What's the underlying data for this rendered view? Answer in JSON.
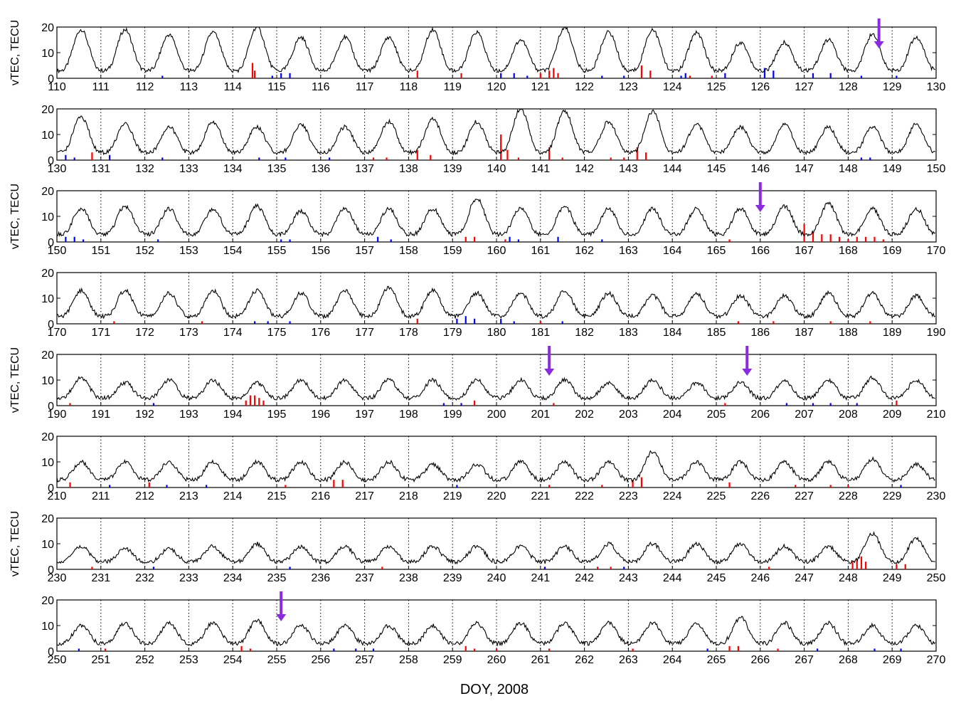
{
  "chart_data": {
    "type": "line",
    "xlabel": "DOY, 2008",
    "ylabel": "vTEC, TECU",
    "y_ticks": [
      0,
      10,
      20
    ],
    "ylim": [
      0,
      20
    ],
    "grid": "vertical dotted at each day",
    "series_colors": {
      "vtec": "#000000",
      "positive_bars": "#ff0000",
      "negative_bars": "#0000ff",
      "arrows": "#8a2be2"
    },
    "panels": [
      {
        "x_ticks": [
          110,
          111,
          112,
          113,
          114,
          115,
          116,
          117,
          118,
          119,
          120,
          121,
          122,
          123,
          124,
          125,
          126,
          127,
          128,
          129,
          130
        ],
        "xlim": [
          110,
          130
        ],
        "ylabel": "vTEC, TECU",
        "amplitudes": [
          19,
          19,
          17,
          18,
          20,
          16,
          16,
          16,
          19,
          18,
          15,
          20,
          18,
          19,
          18,
          14,
          14,
          15,
          17,
          16
        ],
        "arrows": [
          128.7
        ],
        "red": [
          [
            114.45,
            6
          ],
          [
            114.5,
            3
          ],
          [
            118.2,
            3
          ],
          [
            119.2,
            2
          ],
          [
            121.0,
            2
          ],
          [
            121.2,
            3
          ],
          [
            121.3,
            4
          ],
          [
            121.4,
            2
          ],
          [
            123.3,
            5
          ],
          [
            123.5,
            3
          ],
          [
            124.4,
            1
          ],
          [
            124.9,
            1
          ]
        ],
        "blue": [
          [
            112.4,
            1
          ],
          [
            114.9,
            1
          ],
          [
            115.1,
            2
          ],
          [
            115.3,
            2
          ],
          [
            120.1,
            2
          ],
          [
            120.4,
            2
          ],
          [
            120.7,
            1
          ],
          [
            122.4,
            1
          ],
          [
            122.9,
            1
          ],
          [
            124.2,
            1
          ],
          [
            124.3,
            2
          ],
          [
            125.2,
            2
          ],
          [
            126.1,
            4
          ],
          [
            126.3,
            3
          ],
          [
            127.2,
            2
          ],
          [
            127.6,
            2
          ],
          [
            128.3,
            1
          ],
          [
            129.1,
            1
          ]
        ]
      },
      {
        "x_ticks": [
          130,
          131,
          132,
          133,
          134,
          135,
          136,
          137,
          138,
          139,
          140,
          141,
          142,
          143,
          144,
          145,
          146,
          147,
          148,
          149,
          150
        ],
        "xlim": [
          130,
          150
        ],
        "ylabel": "",
        "amplitudes": [
          17,
          14,
          13,
          15,
          13,
          14,
          13,
          15,
          16,
          15,
          20,
          19,
          15,
          19,
          14,
          13,
          14,
          13,
          13,
          14
        ],
        "arrows": [],
        "red": [
          [
            130.8,
            3
          ],
          [
            137.2,
            1
          ],
          [
            137.5,
            1
          ],
          [
            138.2,
            4
          ],
          [
            138.5,
            2
          ],
          [
            140.1,
            10
          ],
          [
            140.25,
            4
          ],
          [
            140.5,
            1
          ],
          [
            141.2,
            5
          ],
          [
            141.5,
            1
          ],
          [
            142.6,
            1
          ],
          [
            142.9,
            1
          ],
          [
            143.2,
            5
          ],
          [
            143.4,
            3
          ]
        ],
        "blue": [
          [
            130.2,
            2
          ],
          [
            130.4,
            1
          ],
          [
            131.2,
            2
          ],
          [
            132.4,
            1
          ],
          [
            134.6,
            1
          ],
          [
            135.2,
            1
          ],
          [
            136.2,
            1
          ],
          [
            148.3,
            1
          ],
          [
            148.5,
            1
          ]
        ]
      },
      {
        "x_ticks": [
          150,
          151,
          152,
          153,
          154,
          155,
          156,
          157,
          158,
          159,
          160,
          161,
          162,
          163,
          164,
          165,
          166,
          167,
          168,
          169,
          170
        ],
        "xlim": [
          150,
          170
        ],
        "ylabel": "vTEC, TECU",
        "amplitudes": [
          13,
          14,
          13,
          13,
          14,
          12,
          13,
          13,
          13,
          17,
          13,
          14,
          13,
          13,
          13,
          13,
          14,
          15,
          13,
          13
        ],
        "arrows": [
          166.0
        ],
        "red": [
          [
            159.3,
            2
          ],
          [
            159.5,
            2
          ],
          [
            160.2,
            1
          ],
          [
            165.3,
            1
          ],
          [
            167.0,
            7
          ],
          [
            167.2,
            4
          ],
          [
            167.4,
            3
          ],
          [
            167.6,
            3
          ],
          [
            167.8,
            2
          ],
          [
            168.0,
            1
          ],
          [
            168.2,
            2
          ],
          [
            168.4,
            2
          ],
          [
            168.6,
            2
          ],
          [
            168.8,
            1
          ]
        ],
        "blue": [
          [
            150.2,
            2
          ],
          [
            150.4,
            2
          ],
          [
            150.6,
            1
          ],
          [
            152.3,
            1
          ],
          [
            155.1,
            1
          ],
          [
            155.3,
            1
          ],
          [
            157.3,
            2
          ],
          [
            157.6,
            1
          ],
          [
            160.3,
            2
          ],
          [
            160.5,
            1
          ],
          [
            161.4,
            2
          ],
          [
            162.4,
            1
          ]
        ]
      },
      {
        "x_ticks": [
          170,
          171,
          172,
          173,
          174,
          175,
          176,
          177,
          178,
          179,
          180,
          181,
          182,
          183,
          184,
          185,
          186,
          187,
          188,
          189,
          190
        ],
        "xlim": [
          170,
          190
        ],
        "ylabel": "",
        "amplitudes": [
          13,
          13,
          12,
          13,
          13,
          12,
          13,
          14,
          13,
          12,
          12,
          13,
          12,
          11,
          12,
          11,
          11,
          12,
          12,
          11
        ],
        "arrows": [],
        "red": [
          [
            171.3,
            1
          ],
          [
            173.3,
            1
          ],
          [
            178.2,
            2
          ],
          [
            181.0,
            1
          ],
          [
            185.5,
            1
          ],
          [
            186.3,
            1
          ],
          [
            187.6,
            1
          ],
          [
            188.5,
            1
          ]
        ],
        "blue": [
          [
            174.5,
            1
          ],
          [
            174.8,
            1
          ],
          [
            175.3,
            1
          ],
          [
            179.1,
            2
          ],
          [
            179.3,
            3
          ],
          [
            179.5,
            2
          ],
          [
            180.1,
            2
          ],
          [
            180.4,
            1
          ],
          [
            181.5,
            1
          ]
        ]
      },
      {
        "x_ticks": [
          190,
          191,
          192,
          193,
          194,
          195,
          196,
          197,
          198,
          199,
          200,
          201,
          202,
          203,
          204,
          205,
          206,
          207,
          208,
          209,
          210
        ],
        "xlim": [
          190,
          210
        ],
        "ylabel": "vTEC, TECU",
        "amplitudes": [
          11,
          9,
          10,
          10,
          9,
          10,
          10,
          10,
          10,
          10,
          10,
          10,
          9,
          10,
          9,
          9,
          10,
          10,
          11,
          10
        ],
        "arrows": [
          201.2,
          205.7
        ],
        "red": [
          [
            190.3,
            1
          ],
          [
            194.3,
            2
          ],
          [
            194.4,
            4
          ],
          [
            194.5,
            4
          ],
          [
            194.6,
            3
          ],
          [
            194.7,
            2
          ],
          [
            199.5,
            2
          ],
          [
            201.3,
            1
          ],
          [
            205.2,
            1
          ],
          [
            209.1,
            2
          ]
        ],
        "blue": [
          [
            192.2,
            1
          ],
          [
            198.8,
            1
          ],
          [
            199.2,
            1
          ],
          [
            206.6,
            1
          ],
          [
            207.2,
            1
          ],
          [
            207.6,
            1
          ],
          [
            208.2,
            1
          ]
        ]
      },
      {
        "x_ticks": [
          210,
          211,
          212,
          213,
          214,
          215,
          216,
          217,
          218,
          219,
          220,
          221,
          222,
          223,
          224,
          225,
          226,
          227,
          228,
          229,
          230
        ],
        "xlim": [
          210,
          230
        ],
        "ylabel": "",
        "amplitudes": [
          10,
          10,
          10,
          10,
          10,
          10,
          10,
          10,
          9,
          9,
          10,
          10,
          10,
          14,
          10,
          10,
          10,
          10,
          11,
          9
        ],
        "arrows": [],
        "red": [
          [
            210.3,
            2
          ],
          [
            212.1,
            2
          ],
          [
            215.2,
            1
          ],
          [
            216.3,
            3
          ],
          [
            216.5,
            3
          ],
          [
            221.2,
            1
          ],
          [
            222.4,
            1
          ],
          [
            223.1,
            3
          ],
          [
            223.3,
            4
          ],
          [
            225.3,
            2
          ],
          [
            226.8,
            1
          ],
          [
            227.6,
            1
          ],
          [
            228.0,
            1
          ]
        ],
        "blue": [
          [
            211.2,
            1
          ],
          [
            212.5,
            1
          ],
          [
            213.4,
            1
          ],
          [
            219.1,
            1
          ],
          [
            229.2,
            1
          ]
        ]
      },
      {
        "x_ticks": [
          230,
          231,
          232,
          233,
          234,
          235,
          236,
          237,
          238,
          239,
          240,
          241,
          242,
          243,
          244,
          245,
          246,
          247,
          248,
          249,
          250
        ],
        "xlim": [
          230,
          250
        ],
        "ylabel": "vTEC, TECU",
        "amplitudes": [
          9,
          8,
          8,
          9,
          10,
          9,
          9,
          9,
          9,
          9,
          9,
          9,
          10,
          10,
          10,
          10,
          9,
          9,
          14,
          12
        ],
        "arrows": [],
        "red": [
          [
            230.8,
            1
          ],
          [
            237.4,
            1
          ],
          [
            241.1,
            1
          ],
          [
            242.3,
            1
          ],
          [
            242.6,
            1
          ],
          [
            246.2,
            1
          ],
          [
            248.1,
            3
          ],
          [
            248.2,
            4
          ],
          [
            248.3,
            5
          ],
          [
            248.4,
            3
          ],
          [
            249.1,
            2
          ],
          [
            249.3,
            2
          ]
        ],
        "blue": [
          [
            232.2,
            1
          ],
          [
            235.3,
            1
          ],
          [
            241.1,
            1
          ],
          [
            242.9,
            1
          ]
        ]
      },
      {
        "x_ticks": [
          250,
          251,
          252,
          253,
          254,
          255,
          256,
          257,
          258,
          259,
          260,
          261,
          262,
          263,
          264,
          265,
          266,
          267,
          268,
          269,
          270
        ],
        "xlim": [
          250,
          270
        ],
        "ylabel": "",
        "amplitudes": [
          10,
          11,
          11,
          11,
          12,
          10,
          10,
          10,
          10,
          11,
          11,
          11,
          11,
          11,
          11,
          13,
          11,
          11,
          10,
          10
        ],
        "arrows": [
          255.1
        ],
        "red": [
          [
            251.1,
            1
          ],
          [
            254.2,
            2
          ],
          [
            254.4,
            1
          ],
          [
            259.3,
            2
          ],
          [
            259.5,
            1
          ],
          [
            260.0,
            1
          ],
          [
            261.2,
            1
          ],
          [
            263.1,
            1
          ],
          [
            265.3,
            2
          ],
          [
            265.5,
            2
          ],
          [
            266.4,
            1
          ]
        ],
        "blue": [
          [
            250.5,
            1
          ],
          [
            256.3,
            1
          ],
          [
            256.8,
            1
          ],
          [
            257.2,
            1
          ],
          [
            264.8,
            1
          ],
          [
            267.3,
            1
          ],
          [
            268.6,
            1
          ],
          [
            269.2,
            1
          ]
        ]
      }
    ]
  }
}
